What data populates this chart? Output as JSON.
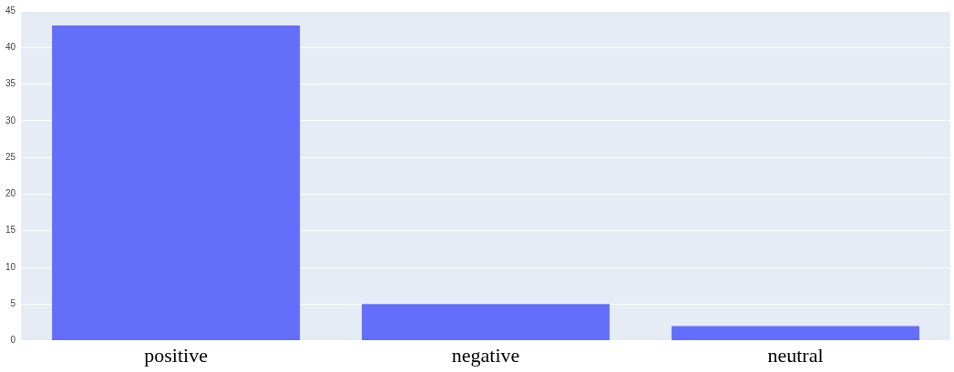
{
  "chart_data": {
    "type": "bar",
    "categories": [
      "positive",
      "negative",
      "neutral"
    ],
    "values": [
      43,
      5,
      2
    ],
    "color": "#636efa",
    "ylim": [
      0,
      45
    ],
    "yticks": [
      0,
      5,
      10,
      15,
      20,
      25,
      30,
      35,
      40,
      45
    ],
    "grid": "y"
  }
}
